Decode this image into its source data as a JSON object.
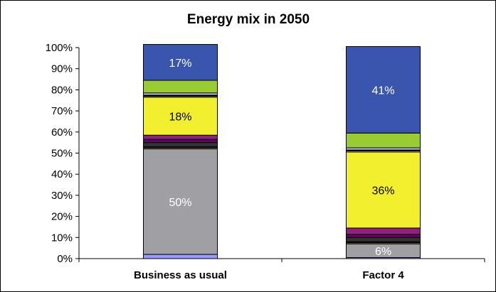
{
  "chart_data": {
    "type": "bar",
    "stacked": true,
    "title": "Energy mix in 2050",
    "categories": [
      "Business as usual",
      "Factor 4"
    ],
    "ylim": [
      0,
      100
    ],
    "y_ticks": [
      "0%",
      "10%",
      "20%",
      "30%",
      "40%",
      "50%",
      "60%",
      "70%",
      "80%",
      "90%",
      "100%"
    ],
    "grid": false,
    "legend": "none",
    "series": [
      {
        "color": "#9999FF",
        "values": [
          2,
          0.5
        ]
      },
      {
        "color": "#A0A0A4",
        "values": [
          50,
          6.5
        ]
      },
      {
        "color": "#FFCC99",
        "values": [
          0.5,
          0.5
        ]
      },
      {
        "color": "#000000",
        "values": [
          0.5,
          0.5
        ]
      },
      {
        "color": "#333333",
        "values": [
          2,
          2
        ]
      },
      {
        "color": "#660066",
        "values": [
          1.5,
          1.5
        ]
      },
      {
        "color": "#8E237E",
        "values": [
          2,
          3
        ]
      },
      {
        "color": "#F2EF2E",
        "values": [
          18,
          36
        ]
      },
      {
        "color": "#FFFFFF",
        "values": [
          0.5,
          0.5
        ]
      },
      {
        "color": "#000000",
        "values": [
          0.5,
          0.5
        ]
      },
      {
        "color": "#CCCCFF",
        "values": [
          1,
          1
        ]
      },
      {
        "color": "#99CC33",
        "values": [
          6,
          7
        ]
      },
      {
        "color": "#3A55AE",
        "values": [
          17,
          41
        ]
      }
    ],
    "data_labels": [
      {
        "category": 0,
        "series": 1,
        "text": "50%",
        "color": "#FFFFFF"
      },
      {
        "category": 0,
        "series": 7,
        "text": "18%",
        "color": "#000000"
      },
      {
        "category": 0,
        "series": 12,
        "text": "17%",
        "color": "#FFFFFF"
      },
      {
        "category": 1,
        "series": 1,
        "text": "6%",
        "color": "#FFFFFF"
      },
      {
        "category": 1,
        "series": 7,
        "text": "36%",
        "color": "#000000"
      },
      {
        "category": 1,
        "series": 12,
        "text": "41%",
        "color": "#FFFFFF"
      }
    ]
  }
}
